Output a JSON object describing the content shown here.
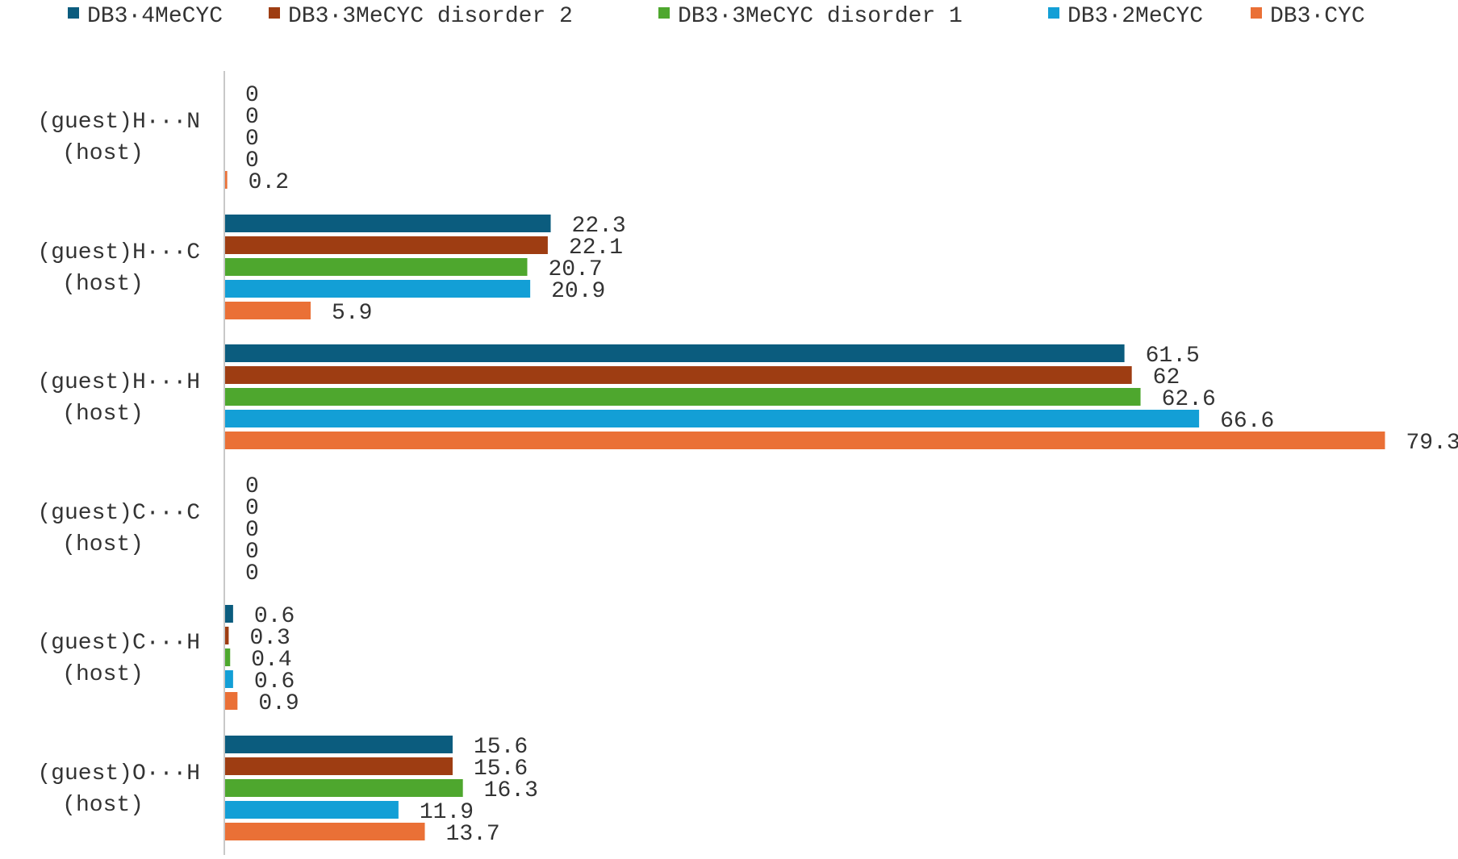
{
  "chart_data": {
    "type": "bar",
    "orientation": "horizontal",
    "categories": [
      [
        "(guest)H···N",
        "(host)"
      ],
      [
        "(guest)H···C",
        "(host)"
      ],
      [
        "(guest)H···H",
        "(host)"
      ],
      [
        "(guest)C···C",
        "(host)"
      ],
      [
        "(guest)C···H",
        "(host)"
      ],
      [
        "(guest)O···H",
        "(host)"
      ]
    ],
    "series": [
      {
        "name": "DB3·4MeCYC",
        "color": "#0b5c7e",
        "values": [
          0,
          22.3,
          61.5,
          0,
          0.6,
          15.6
        ]
      },
      {
        "name": "DB3·3MeCYC disorder 2",
        "color": "#9e3d12",
        "values": [
          0,
          22.1,
          62,
          0,
          0.3,
          15.6
        ]
      },
      {
        "name": "DB3·3MeCYC disorder 1",
        "color": "#4ea72e",
        "values": [
          0,
          20.7,
          62.6,
          0,
          0.4,
          16.3
        ]
      },
      {
        "name": "DB3·2MeCYC",
        "color": "#139fd6",
        "values": [
          0,
          20.9,
          66.6,
          0,
          0.6,
          11.9
        ]
      },
      {
        "name": "DB3·CYC",
        "color": "#ea7036",
        "values": [
          0.2,
          5.9,
          79.3,
          0,
          0.9,
          13.7
        ]
      }
    ],
    "title": "",
    "xlabel": "",
    "ylabel": "",
    "xlim": [
      0,
      79.3
    ],
    "grid": false,
    "legend_position": "top",
    "data_labels": true
  }
}
